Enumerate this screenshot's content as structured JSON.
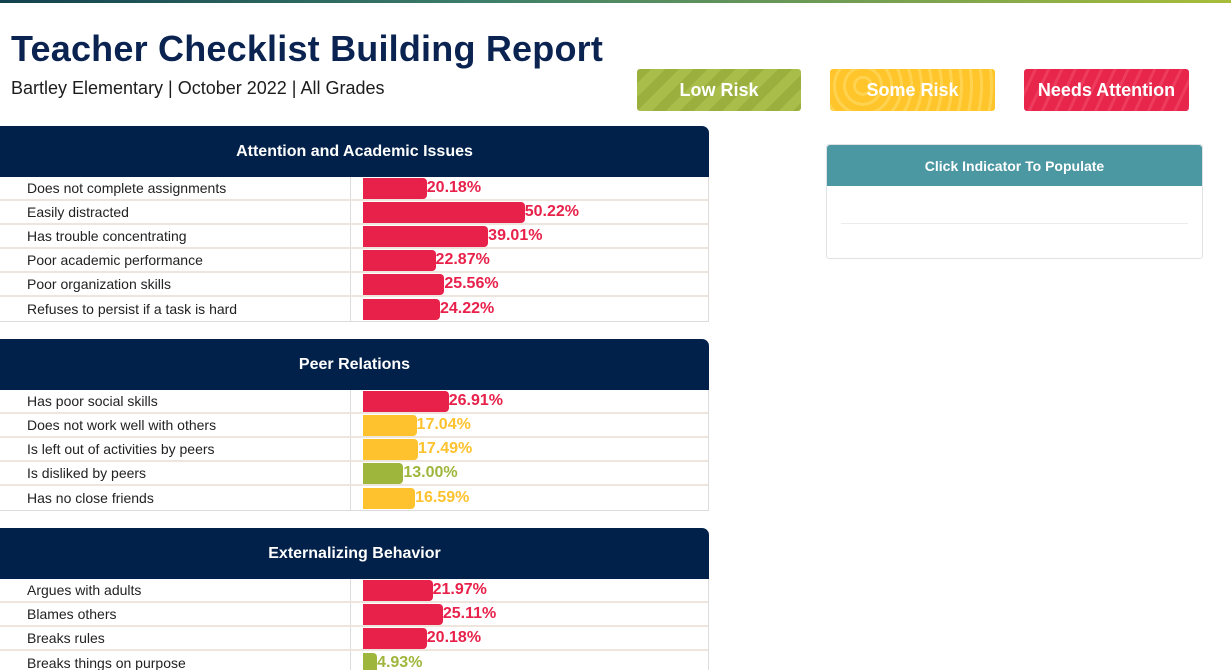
{
  "header": {
    "title": "Teacher Checklist Building Report",
    "subtitle": "Bartley Elementary | October 2022 | All Grades"
  },
  "legend": {
    "low_risk": "Low Risk",
    "some_risk": "Some Risk",
    "needs_attention": "Needs Attention"
  },
  "colors": {
    "header_navy": "#02214a",
    "title_navy": "#0b2350",
    "needs_attention": "#e8214a",
    "some_risk": "#fdc22e",
    "low_risk": "#9eb63c",
    "indicator_teal": "#4b97a2"
  },
  "indicator_panel": {
    "title": "Click Indicator To Populate"
  },
  "sections": [
    {
      "title": "Attention and Academic Issues",
      "rows": [
        {
          "label": "Does not complete assignments",
          "value": 20.18,
          "display": "20.18%",
          "risk": "red"
        },
        {
          "label": "Easily distracted",
          "value": 50.22,
          "display": "50.22%",
          "risk": "red"
        },
        {
          "label": "Has trouble concentrating",
          "value": 39.01,
          "display": "39.01%",
          "risk": "red"
        },
        {
          "label": "Poor academic performance",
          "value": 22.87,
          "display": "22.87%",
          "risk": "red"
        },
        {
          "label": "Poor organization skills",
          "value": 25.56,
          "display": "25.56%",
          "risk": "red"
        },
        {
          "label": "Refuses to persist if a task is hard",
          "value": 24.22,
          "display": "24.22%",
          "risk": "red"
        }
      ]
    },
    {
      "title": "Peer Relations",
      "rows": [
        {
          "label": "Has poor social skills",
          "value": 26.91,
          "display": "26.91%",
          "risk": "red"
        },
        {
          "label": "Does not work well with others",
          "value": 17.04,
          "display": "17.04%",
          "risk": "yellow"
        },
        {
          "label": "Is left out of activities by peers",
          "value": 17.49,
          "display": "17.49%",
          "risk": "yellow"
        },
        {
          "label": "Is disliked by peers",
          "value": 13.0,
          "display": "13.00%",
          "risk": "green"
        },
        {
          "label": "Has no close friends",
          "value": 16.59,
          "display": "16.59%",
          "risk": "yellow"
        }
      ]
    },
    {
      "title": "Externalizing Behavior",
      "rows": [
        {
          "label": "Argues with adults",
          "value": 21.97,
          "display": "21.97%",
          "risk": "red"
        },
        {
          "label": "Blames others",
          "value": 25.11,
          "display": "25.11%",
          "risk": "red"
        },
        {
          "label": "Breaks rules",
          "value": 20.18,
          "display": "20.18%",
          "risk": "red"
        },
        {
          "label": "Breaks things on purpose",
          "value": 4.93,
          "display": "4.93%",
          "risk": "green"
        }
      ]
    }
  ]
}
